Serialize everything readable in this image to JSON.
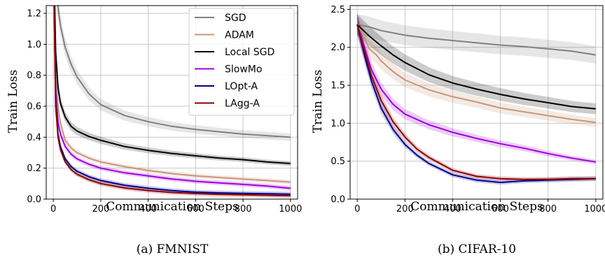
{
  "chart_data": [
    {
      "type": "line",
      "caption": "(a) FMNIST",
      "xlabel": "Communication Steps",
      "ylabel": "Train Loss",
      "xlim": [
        -30,
        1030
      ],
      "ylim": [
        0,
        1.25
      ],
      "xticks": [
        0,
        200,
        400,
        600,
        800,
        1000
      ],
      "yticks": [
        0.0,
        0.2,
        0.4,
        0.6,
        0.8,
        1.0,
        1.2
      ],
      "grid": true,
      "legend": "top-right",
      "series": [
        {
          "name": "SGD",
          "color": "#808080",
          "x": [
            0,
            15,
            30,
            50,
            75,
            100,
            150,
            200,
            300,
            400,
            500,
            600,
            700,
            800,
            900,
            1000
          ],
          "y": [
            1.8,
            1.3,
            1.12,
            0.98,
            0.87,
            0.79,
            0.68,
            0.61,
            0.54,
            0.5,
            0.47,
            0.45,
            0.435,
            0.42,
            0.41,
            0.4
          ]
        },
        {
          "name": "ADAM",
          "color": "#c8967a",
          "x": [
            0,
            10,
            20,
            30,
            50,
            75,
            100,
            150,
            200,
            300,
            400,
            500,
            600,
            700,
            800,
            900,
            1000
          ],
          "y": [
            1.6,
            0.82,
            0.6,
            0.49,
            0.38,
            0.33,
            0.3,
            0.265,
            0.24,
            0.21,
            0.185,
            0.165,
            0.15,
            0.14,
            0.13,
            0.12,
            0.11
          ]
        },
        {
          "name": "Local SGD",
          "color": "#000000",
          "x": [
            0,
            10,
            20,
            30,
            50,
            75,
            100,
            150,
            200,
            300,
            400,
            500,
            600,
            700,
            800,
            900,
            1000
          ],
          "y": [
            1.7,
            0.95,
            0.72,
            0.62,
            0.53,
            0.47,
            0.44,
            0.405,
            0.38,
            0.34,
            0.315,
            0.295,
            0.28,
            0.265,
            0.255,
            0.24,
            0.23
          ]
        },
        {
          "name": "SlowMo",
          "color": "#a000e0",
          "x": [
            0,
            10,
            20,
            30,
            50,
            75,
            100,
            150,
            200,
            300,
            400,
            500,
            600,
            700,
            800,
            900,
            1000
          ],
          "y": [
            1.6,
            0.7,
            0.5,
            0.42,
            0.34,
            0.29,
            0.26,
            0.225,
            0.2,
            0.17,
            0.15,
            0.13,
            0.115,
            0.105,
            0.095,
            0.085,
            0.07
          ]
        },
        {
          "name": "LOpt-A",
          "color": "#00008b",
          "x": [
            0,
            10,
            20,
            30,
            50,
            75,
            100,
            150,
            200,
            300,
            400,
            500,
            600,
            700,
            800,
            900,
            1000
          ],
          "y": [
            1.6,
            0.62,
            0.42,
            0.34,
            0.26,
            0.21,
            0.18,
            0.145,
            0.12,
            0.09,
            0.07,
            0.055,
            0.045,
            0.04,
            0.037,
            0.035,
            0.032
          ]
        },
        {
          "name": "LAgg-A",
          "color": "#8b0000",
          "x": [
            0,
            10,
            20,
            30,
            50,
            75,
            100,
            150,
            200,
            300,
            400,
            500,
            600,
            700,
            800,
            900,
            1000
          ],
          "y": [
            1.6,
            0.6,
            0.4,
            0.32,
            0.24,
            0.19,
            0.16,
            0.125,
            0.1,
            0.072,
            0.055,
            0.043,
            0.036,
            0.031,
            0.028,
            0.025,
            0.022
          ]
        }
      ]
    },
    {
      "type": "line",
      "caption": "(b) CIFAR-10",
      "xlabel": "Communication Steps",
      "ylabel": "Train Loss",
      "xlim": [
        -30,
        1030
      ],
      "ylim": [
        0,
        2.55
      ],
      "xticks": [
        0,
        200,
        400,
        600,
        800,
        1000
      ],
      "yticks": [
        0.0,
        0.5,
        1.0,
        1.5,
        2.0,
        2.5
      ],
      "grid": true,
      "legend": "none",
      "series": [
        {
          "name": "SGD",
          "color": "#808080",
          "x": [
            0,
            50,
            100,
            200,
            300,
            400,
            500,
            600,
            700,
            800,
            900,
            1000
          ],
          "y": [
            2.3,
            2.27,
            2.22,
            2.16,
            2.12,
            2.09,
            2.06,
            2.03,
            2.01,
            1.98,
            1.95,
            1.9
          ]
        },
        {
          "name": "ADAM",
          "color": "#c8967a",
          "x": [
            0,
            20,
            50,
            80,
            100,
            150,
            200,
            300,
            400,
            500,
            600,
            700,
            800,
            900,
            1000
          ],
          "y": [
            2.3,
            2.2,
            1.98,
            1.9,
            1.82,
            1.68,
            1.57,
            1.44,
            1.35,
            1.28,
            1.2,
            1.15,
            1.1,
            1.05,
            1.01
          ]
        },
        {
          "name": "Local SGD",
          "color": "#000000",
          "x": [
            0,
            50,
            100,
            150,
            200,
            300,
            400,
            500,
            600,
            700,
            800,
            900,
            1000
          ],
          "y": [
            2.3,
            2.15,
            2.02,
            1.9,
            1.8,
            1.64,
            1.53,
            1.45,
            1.38,
            1.32,
            1.27,
            1.22,
            1.19
          ]
        },
        {
          "name": "SlowMo",
          "color": "#a000e0",
          "x": [
            0,
            30,
            60,
            100,
            150,
            200,
            300,
            400,
            500,
            600,
            700,
            800,
            900,
            1000
          ],
          "y": [
            2.3,
            2.0,
            1.7,
            1.45,
            1.25,
            1.12,
            0.98,
            0.88,
            0.8,
            0.73,
            0.67,
            0.6,
            0.54,
            0.49
          ]
        },
        {
          "name": "LOpt-A",
          "color": "#00008b",
          "x": [
            0,
            30,
            60,
            100,
            150,
            200,
            250,
            300,
            400,
            500,
            600,
            700,
            800,
            900,
            1000
          ],
          "y": [
            2.3,
            1.9,
            1.55,
            1.2,
            0.92,
            0.72,
            0.58,
            0.47,
            0.32,
            0.25,
            0.22,
            0.24,
            0.25,
            0.26,
            0.27
          ]
        },
        {
          "name": "LAgg-A",
          "color": "#8b0000",
          "x": [
            0,
            30,
            60,
            100,
            150,
            200,
            250,
            300,
            400,
            500,
            600,
            700,
            800,
            900,
            1000
          ],
          "y": [
            2.3,
            1.95,
            1.62,
            1.3,
            1.02,
            0.82,
            0.66,
            0.55,
            0.38,
            0.3,
            0.27,
            0.26,
            0.26,
            0.27,
            0.27
          ]
        }
      ]
    }
  ]
}
